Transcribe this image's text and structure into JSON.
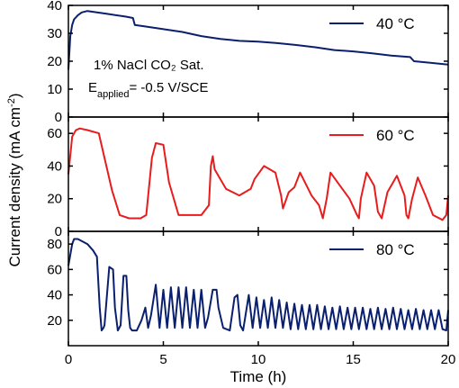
{
  "chart_data": {
    "type": "line",
    "xlabel": "Time (h)",
    "ylabel_parts": [
      "Current density (mA cm",
      "-2",
      ")"
    ],
    "xlim": [
      0,
      20
    ],
    "xticks": [
      "0",
      "5",
      "10",
      "15",
      "20"
    ],
    "annotation_line1": "1% NaCl CO₂ Sat.",
    "annotation_line2_parts": [
      "E",
      "applied",
      "= -0.5 V/SCE"
    ],
    "panels": [
      {
        "name": "40 °C",
        "color": "#0a1f6e",
        "ylim": [
          0,
          40
        ],
        "yticks": [
          "0",
          "10",
          "20",
          "30",
          "40"
        ],
        "x": [
          0,
          0.1,
          0.2,
          0.3,
          0.5,
          0.7,
          1.0,
          1.5,
          2.0,
          3.0,
          3.4,
          3.5,
          4.0,
          5.0,
          6.0,
          7.0,
          8.0,
          9.0,
          10.0,
          11.0,
          12.0,
          13.0,
          14.0,
          15.0,
          16.0,
          17.0,
          18.0,
          18.2,
          19.0,
          20.0
        ],
        "values": [
          17,
          29,
          33,
          35,
          36.5,
          37.5,
          38,
          37.5,
          37,
          36,
          35.5,
          33,
          32.5,
          31.5,
          30.5,
          29,
          28,
          27.3,
          27,
          26.5,
          25.8,
          25,
          24,
          23.5,
          22.8,
          22,
          21.5,
          20,
          19.5,
          18.8
        ]
      },
      {
        "name": "60 °C",
        "color": "#e81c1c",
        "ylim": [
          0,
          70
        ],
        "yticks": [
          "0",
          "20",
          "40",
          "60"
        ],
        "x": [
          0,
          0.2,
          0.4,
          0.6,
          1.0,
          1.6,
          1.9,
          2.3,
          2.7,
          3.2,
          3.8,
          4.1,
          4.4,
          4.6,
          5.0,
          5.3,
          5.8,
          6.3,
          7.0,
          7.4,
          7.5,
          7.6,
          7.7,
          8.3,
          9.0,
          9.6,
          9.8,
          10.3,
          10.9,
          11.2,
          11.3,
          11.6,
          11.9,
          12.2,
          12.8,
          13.2,
          13.4,
          13.6,
          13.8,
          14.3,
          14.8,
          15.2,
          15.3,
          15.4,
          15.7,
          16.1,
          16.3,
          16.5,
          16.8,
          17.3,
          17.7,
          17.8,
          17.9,
          18.1,
          18.4,
          18.8,
          19.2,
          19.7,
          19.9,
          20.0
        ],
        "values": [
          35,
          58,
          62,
          63,
          62,
          60,
          45,
          25,
          10,
          8,
          8,
          10,
          45,
          54,
          53,
          30,
          10,
          10,
          10,
          16,
          40,
          46,
          38,
          26,
          22,
          26,
          32,
          40,
          36,
          22,
          14,
          24,
          27,
          36,
          22,
          16,
          8,
          20,
          36,
          28,
          20,
          10,
          8,
          20,
          36,
          28,
          12,
          8,
          24,
          34,
          22,
          10,
          8,
          20,
          33,
          22,
          10,
          7,
          10,
          22
        ]
      },
      {
        "name": "80 °C",
        "color": "#0a1f6e",
        "ylim": [
          0,
          90
        ],
        "yticks": [
          "20",
          "40",
          "60",
          "80"
        ],
        "x": [
          0,
          0.2,
          0.3,
          0.5,
          1.0,
          1.3,
          1.5,
          1.65,
          1.75,
          1.85,
          1.9,
          2.15,
          2.35,
          2.45,
          2.6,
          2.75,
          2.9,
          3.05,
          3.15,
          3.25,
          3.35,
          3.6,
          3.85,
          4.05,
          4.2,
          4.35,
          4.6,
          4.8,
          5.0,
          5.2,
          5.4,
          5.6,
          5.8,
          6.0,
          6.2,
          6.4,
          6.6,
          6.8,
          7.0,
          7.2,
          7.35,
          7.6,
          7.8,
          7.9,
          8.15,
          8.5,
          8.75,
          8.9,
          9.05,
          9.2,
          9.5,
          9.7,
          9.9,
          10.1,
          10.3,
          10.5,
          10.7,
          10.9,
          11.1,
          11.3,
          11.5,
          11.7,
          11.9,
          12.1,
          12.3,
          12.5,
          12.7,
          12.9,
          13.1,
          13.3,
          13.5,
          13.7,
          13.9,
          14.1,
          14.3,
          14.5,
          14.7,
          14.9,
          15.1,
          15.3,
          15.5,
          15.7,
          15.9,
          16.1,
          16.3,
          16.5,
          16.7,
          16.9,
          17.1,
          17.3,
          17.5,
          17.7,
          17.9,
          18.1,
          18.3,
          18.5,
          18.7,
          18.9,
          19.1,
          19.3,
          19.5,
          19.7,
          19.9,
          20.0
        ],
        "values": [
          63,
          80,
          84,
          84,
          80,
          75,
          70,
          30,
          12,
          14,
          16,
          62,
          60,
          30,
          12,
          16,
          55,
          55,
          28,
          14,
          12,
          12,
          20,
          30,
          14,
          24,
          48,
          14,
          44,
          14,
          46,
          14,
          46,
          14,
          46,
          14,
          44,
          14,
          44,
          14,
          22,
          44,
          44,
          30,
          14,
          12,
          38,
          40,
          16,
          12,
          40,
          14,
          38,
          14,
          36,
          14,
          38,
          14,
          36,
          14,
          34,
          13,
          33,
          13,
          32,
          13,
          32,
          13,
          32,
          13,
          31,
          13,
          30,
          13,
          31,
          13,
          30,
          13,
          30,
          13,
          30,
          13,
          29,
          13,
          30,
          13,
          29,
          13,
          30,
          13,
          29,
          13,
          28,
          13,
          29,
          13,
          28,
          13,
          28,
          13,
          28,
          13,
          12,
          28
        ]
      }
    ]
  }
}
